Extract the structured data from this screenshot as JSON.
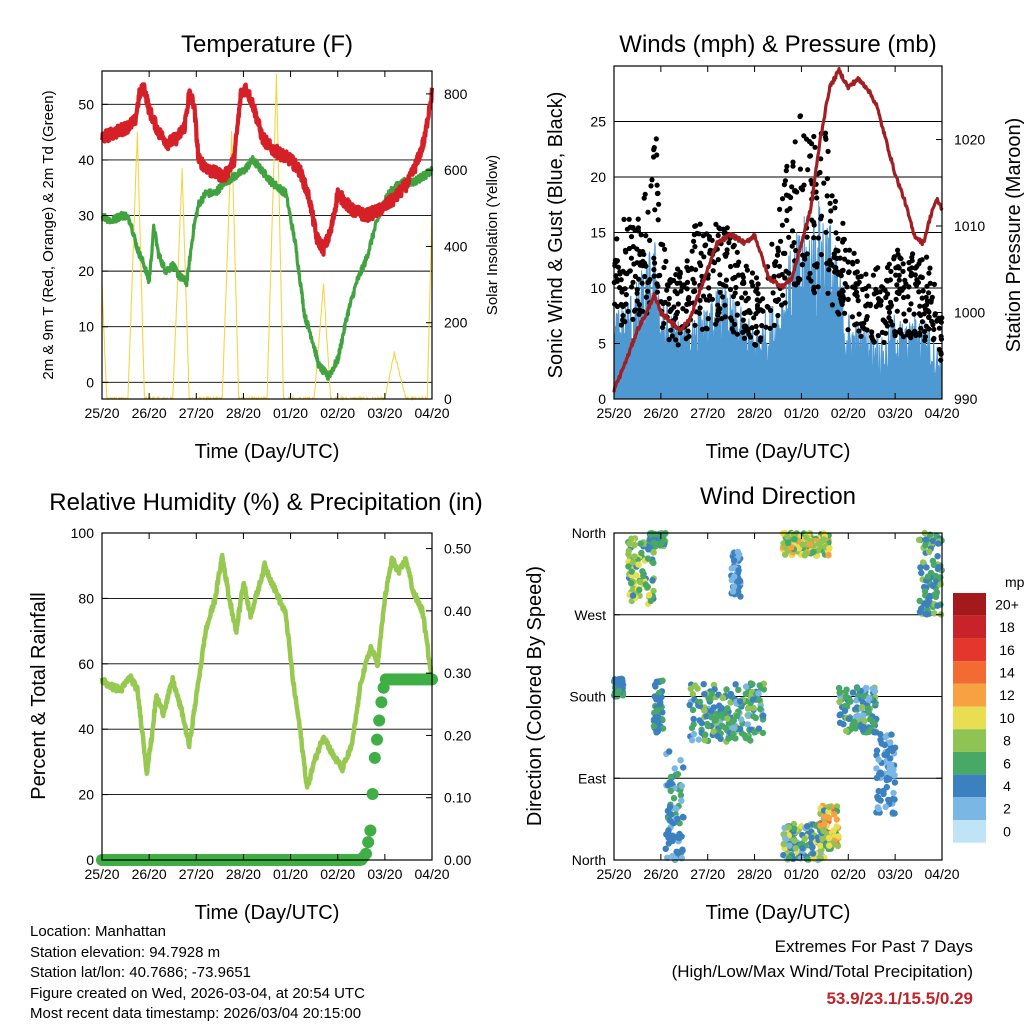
{
  "colors": {
    "temp_2m": "#d62027",
    "dewpoint": "#41a33f",
    "insolation": "#f5d547",
    "wind_sonic": "#4f99d3",
    "wind_gust": "#000000",
    "pressure": "#a11f23",
    "rh": "#97c950",
    "precip": "#3fae45",
    "extremes_text": "#c0242b"
  },
  "chart_data": [
    {
      "id": "temperature",
      "type": "line",
      "title": "Temperature (F)",
      "xlabel": "Time (Day/UTC)",
      "ylabel": "2m & 9m T (Red, Orange) & 2m Td (Green)",
      "ylabel_right": "Solar Insolation (Yellow)",
      "x_ticks": [
        "25/20",
        "26/20",
        "27/20",
        "28/20",
        "01/20",
        "02/20",
        "03/20",
        "04/20"
      ],
      "xlim": [
        0,
        7
      ],
      "ylim": [
        -3,
        56
      ],
      "y_ticks": [
        0,
        10,
        20,
        30,
        40,
        50
      ],
      "ylim_right": [
        0,
        860
      ],
      "y_ticks_right": [
        0,
        200,
        400,
        600,
        800
      ],
      "grid": true,
      "series": [
        {
          "name": "2m T",
          "color_key": "temp_2m",
          "x": [
            0,
            0.3,
            0.55,
            0.7,
            0.8,
            0.9,
            1.0,
            1.2,
            1.4,
            1.6,
            1.75,
            1.85,
            1.95,
            2.05,
            2.3,
            2.6,
            2.8,
            2.95,
            3.05,
            3.2,
            3.4,
            3.6,
            3.8,
            4.0,
            4.2,
            4.4,
            4.55,
            4.7,
            4.85,
            5.0,
            5.3,
            5.6,
            5.9,
            6.2,
            6.5,
            6.7,
            6.85,
            6.95,
            7.0
          ],
          "values": [
            44,
            45,
            46,
            47,
            52,
            53,
            49,
            45,
            43,
            44,
            46,
            52,
            50,
            40,
            38,
            37,
            40,
            52,
            53,
            50,
            44,
            42,
            41,
            40,
            38,
            33,
            26,
            24,
            27,
            34,
            31,
            30,
            31,
            33,
            36,
            40,
            44,
            50,
            52
          ]
        },
        {
          "name": "2m Td",
          "color_key": "dewpoint",
          "x": [
            0,
            0.2,
            0.4,
            0.5,
            0.6,
            0.75,
            0.9,
            1.0,
            1.1,
            1.2,
            1.35,
            1.5,
            1.65,
            1.8,
            1.95,
            2.05,
            2.2,
            2.4,
            2.6,
            2.8,
            3.0,
            3.2,
            3.4,
            3.6,
            3.75,
            3.9,
            4.1,
            4.3,
            4.45,
            4.6,
            4.8,
            5.0,
            5.2,
            5.4,
            5.6,
            5.8,
            6.0,
            6.2,
            6.4,
            6.6,
            6.8,
            7.0
          ],
          "values": [
            30,
            29,
            30,
            30,
            29,
            24,
            21,
            18,
            28,
            23,
            20,
            21,
            19,
            18,
            28,
            32,
            34,
            34,
            36,
            37,
            38,
            40,
            38,
            36,
            35,
            34,
            25,
            12,
            8,
            3,
            1,
            4,
            12,
            18,
            22,
            28,
            33,
            35,
            36,
            36,
            37,
            38
          ]
        },
        {
          "name": "Solar Insolation",
          "color_key": "insolation",
          "axis": "right",
          "x": [
            0,
            0.1,
            0.35,
            0.55,
            0.75,
            0.9,
            1.05,
            1.25,
            1.35,
            1.5,
            1.7,
            1.85,
            1.95,
            2.15,
            2.35,
            2.55,
            2.75,
            2.9,
            3.05,
            3.25,
            3.35,
            3.5,
            3.7,
            3.85,
            4.0,
            4.2,
            4.35,
            4.5,
            4.7,
            4.85,
            5.05,
            5.2,
            5.5,
            5.75,
            5.85,
            6.0,
            6.2,
            6.45,
            6.75,
            6.9,
            7.0
          ],
          "values": [
            300,
            0,
            0,
            0,
            700,
            0,
            0,
            0,
            0,
            0,
            600,
            0,
            0,
            0,
            0,
            0,
            700,
            0,
            0,
            0,
            0,
            0,
            850,
            0,
            0,
            0,
            0,
            0,
            300,
            0,
            0,
            0,
            0,
            0,
            0,
            0,
            120,
            0,
            0,
            0,
            500
          ]
        }
      ]
    },
    {
      "id": "winds",
      "type": "line",
      "title": "Winds (mph) & Pressure (mb)",
      "xlabel": "Time (Day/UTC)",
      "ylabel": "Sonic Wind & Gust (Blue, Black)",
      "ylabel_right": "Station Pressure (Maroon)",
      "x_ticks": [
        "25/20",
        "26/20",
        "27/20",
        "28/20",
        "01/20",
        "02/20",
        "03/20",
        "04/20"
      ],
      "xlim": [
        0,
        7
      ],
      "ylim": [
        0,
        30
      ],
      "y_ticks": [
        0,
        5,
        10,
        15,
        20,
        25
      ],
      "ylim_right": [
        990,
        1028.5
      ],
      "y_ticks_right": [
        990,
        1000,
        1010,
        1020
      ],
      "grid": true,
      "series": [
        {
          "name": "Sonic Wind",
          "color_key": "wind_sonic",
          "x": [
            0,
            0.25,
            0.5,
            0.75,
            0.9,
            1.0,
            1.25,
            1.5,
            1.75,
            2.0,
            2.25,
            2.5,
            2.75,
            3.0,
            3.25,
            3.5,
            3.75,
            4.0,
            4.25,
            4.5,
            4.75,
            5.0,
            5.25,
            5.5,
            5.75,
            6.0,
            6.25,
            6.5,
            6.75,
            7.0
          ],
          "values": [
            6,
            7,
            8,
            10,
            11,
            7,
            6,
            5,
            7,
            6,
            8,
            7,
            6,
            5,
            6,
            7,
            10,
            12,
            13,
            14,
            10,
            6,
            5,
            5,
            4,
            6,
            5,
            6,
            5,
            3
          ]
        },
        {
          "name": "Gust",
          "color_key": "wind_gust",
          "x": [
            0,
            0.25,
            0.5,
            0.75,
            0.9,
            1.0,
            1.25,
            1.5,
            1.75,
            2.0,
            2.25,
            2.5,
            2.75,
            3.0,
            3.25,
            3.5,
            3.75,
            4.0,
            4.25,
            4.5,
            4.75,
            5.0,
            5.25,
            5.5,
            5.75,
            6.0,
            6.25,
            6.5,
            6.75,
            7.0
          ],
          "values": [
            12,
            14,
            13,
            16,
            20,
            12,
            10,
            9,
            13,
            12,
            14,
            12,
            10,
            9,
            10,
            13,
            18,
            21,
            19,
            20,
            15,
            11,
            10,
            10,
            9,
            11,
            10,
            11,
            10,
            6
          ]
        },
        {
          "name": "Station Pressure",
          "color_key": "pressure",
          "axis": "right",
          "x": [
            0,
            0.15,
            0.3,
            0.5,
            0.7,
            0.85,
            1.0,
            1.2,
            1.4,
            1.6,
            1.8,
            2.0,
            2.2,
            2.5,
            2.8,
            3.0,
            3.3,
            3.6,
            3.8,
            4.0,
            4.2,
            4.4,
            4.6,
            4.8,
            5.0,
            5.2,
            5.4,
            5.6,
            5.8,
            6.0,
            6.2,
            6.4,
            6.6,
            6.8,
            6.9,
            7.0
          ],
          "values": [
            991,
            993,
            995,
            998,
            1000,
            1002,
            1000,
            999,
            998,
            999,
            1002,
            1005,
            1008,
            1009,
            1008,
            1009,
            1004,
            1003,
            1004,
            1008,
            1012,
            1020,
            1026,
            1028,
            1026,
            1027,
            1026,
            1024,
            1020,
            1016,
            1013,
            1009,
            1008,
            1012,
            1013,
            1012
          ]
        }
      ]
    },
    {
      "id": "humidity",
      "type": "line",
      "title": "Relative Humidity (%) & Precipitation (in)",
      "xlabel": "Time (Day/UTC)",
      "ylabel": "Percent & Total Rainfall",
      "x_ticks": [
        "25/20",
        "26/20",
        "27/20",
        "28/20",
        "01/20",
        "02/20",
        "03/20",
        "04/20"
      ],
      "xlim": [
        0,
        7
      ],
      "ylim": [
        0,
        100
      ],
      "y_ticks": [
        0,
        20,
        40,
        60,
        80,
        100
      ],
      "ylim_right": [
        0,
        0.525
      ],
      "y_ticks_right": [
        "0.00",
        "0.10",
        "0.20",
        "0.30",
        "0.40",
        "0.50"
      ],
      "grid": true,
      "series": [
        {
          "name": "Relative Humidity",
          "color_key": "rh",
          "x": [
            0,
            0.2,
            0.4,
            0.6,
            0.75,
            0.85,
            0.95,
            1.05,
            1.15,
            1.3,
            1.5,
            1.7,
            1.85,
            2.0,
            2.2,
            2.4,
            2.55,
            2.7,
            2.85,
            3.0,
            3.15,
            3.3,
            3.45,
            3.6,
            3.75,
            3.9,
            4.05,
            4.2,
            4.35,
            4.5,
            4.7,
            4.9,
            5.1,
            5.3,
            5.5,
            5.7,
            5.85,
            6.0,
            6.15,
            6.3,
            6.45,
            6.6,
            6.8,
            7.0
          ],
          "values": [
            55,
            53,
            52,
            56,
            52,
            40,
            27,
            37,
            50,
            45,
            55,
            45,
            35,
            50,
            70,
            80,
            93,
            80,
            70,
            85,
            75,
            82,
            90,
            85,
            80,
            75,
            55,
            40,
            22,
            30,
            38,
            32,
            28,
            35,
            55,
            65,
            60,
            80,
            92,
            88,
            92,
            82,
            76,
            55
          ]
        },
        {
          "name": "Total Precipitation",
          "color_key": "precip",
          "axis": "right",
          "x": [
            0,
            5.3,
            5.5,
            5.6,
            5.7,
            5.75,
            5.8,
            5.85,
            5.9,
            6.0,
            6.5,
            7.0
          ],
          "values": [
            0,
            0,
            0,
            0.01,
            0.05,
            0.12,
            0.18,
            0.2,
            0.24,
            0.29,
            0.29,
            0.29
          ]
        }
      ]
    },
    {
      "id": "wind_direction",
      "type": "scatter",
      "title": "Wind Direction",
      "xlabel": "Time (Day/UTC)",
      "ylabel": "Direction (Colored By Speed)",
      "x_ticks": [
        "25/20",
        "26/20",
        "27/20",
        "28/20",
        "01/20",
        "02/20",
        "03/20",
        "04/20"
      ],
      "xlim": [
        0,
        7
      ],
      "ylim": [
        0,
        360
      ],
      "y_ticks": [
        {
          "value": 0,
          "label": "North"
        },
        {
          "value": 90,
          "label": "East"
        },
        {
          "value": 180,
          "label": "South"
        },
        {
          "value": 270,
          "label": "West"
        },
        {
          "value": 360,
          "label": "North"
        }
      ],
      "grid": true,
      "color_by": "speed",
      "colorbar": {
        "title": "mph",
        "labels": [
          "20+",
          "18",
          "16",
          "14",
          "12",
          "10",
          "8",
          "6",
          "4",
          "2",
          "0"
        ],
        "colors": [
          "#a3191c",
          "#c8232a",
          "#e4362c",
          "#f26b33",
          "#f8a142",
          "#e9dd52",
          "#8fc454",
          "#48a866",
          "#3d80c0",
          "#7ab7e4",
          "#bfe4f8"
        ]
      },
      "clusters": [
        {
          "x": [
            0,
            0.2
          ],
          "dir": [
            180,
            200
          ],
          "speed": [
            3,
            7
          ]
        },
        {
          "x": [
            0.3,
            0.85
          ],
          "dir": [
            280,
            355
          ],
          "speed": [
            4,
            11
          ]
        },
        {
          "x": [
            0.75,
            1.1
          ],
          "dir": [
            345,
            360
          ],
          "speed": [
            4,
            8
          ]
        },
        {
          "x": [
            0.85,
            1.05
          ],
          "dir": [
            140,
            200
          ],
          "speed": [
            3,
            6
          ]
        },
        {
          "x": [
            1.1,
            1.5
          ],
          "dir": [
            0,
            120
          ],
          "speed": [
            2,
            6
          ]
        },
        {
          "x": [
            1.6,
            3.2
          ],
          "dir": [
            130,
            195
          ],
          "speed": [
            2,
            8
          ]
        },
        {
          "x": [
            2.5,
            2.7
          ],
          "dir": [
            290,
            340
          ],
          "speed": [
            1,
            5
          ]
        },
        {
          "x": [
            3.6,
            4.6
          ],
          "dir": [
            335,
            360
          ],
          "speed": [
            5,
            12
          ]
        },
        {
          "x": [
            3.6,
            4.5
          ],
          "dir": [
            0,
            40
          ],
          "speed": [
            2,
            10
          ]
        },
        {
          "x": [
            4.4,
            4.8
          ],
          "dir": [
            10,
            60
          ],
          "speed": [
            4,
            14
          ]
        },
        {
          "x": [
            4.8,
            5.6
          ],
          "dir": [
            140,
            190
          ],
          "speed": [
            2,
            8
          ]
        },
        {
          "x": [
            5.6,
            6.0
          ],
          "dir": [
            50,
            140
          ],
          "speed": [
            2,
            5
          ]
        },
        {
          "x": [
            6.5,
            7.0
          ],
          "dir": [
            270,
            360
          ],
          "speed": [
            3,
            8
          ]
        }
      ]
    }
  ],
  "info": {
    "location": "Location: Manhattan",
    "elevation": "Station elevation: 94.7928 m",
    "latlon": "Station lat/lon: 40.7686; -73.9651",
    "created": "Figure created on Wed, 2026-03-04, at 20:54 UTC",
    "recent": "Most recent data timestamp: 2026/03/04 20:15:00"
  },
  "extremes": {
    "title": "Extremes For Past 7 Days",
    "subtitle": "(High/Low/Max Wind/Total Precipitation)",
    "values": "53.9/23.1/15.5/0.29"
  }
}
